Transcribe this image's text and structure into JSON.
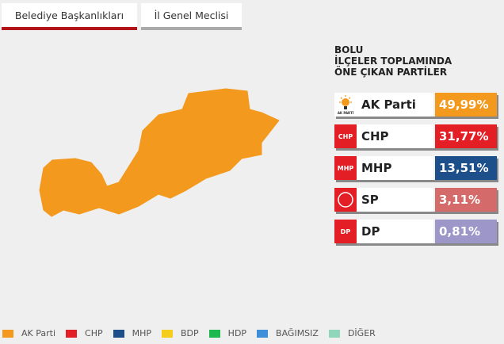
{
  "tabs": [
    {
      "label": "Belediye Başkanlıkları",
      "active": true
    },
    {
      "label": "İl Genel Meclisi",
      "active": false
    }
  ],
  "map": {
    "region": "Bolu",
    "fill": "#f39a1e"
  },
  "panel": {
    "title_lines": [
      "BOLU",
      "İLÇELER TOPLAMINDA",
      "ÖNE ÇIKAN PARTİLER"
    ],
    "parties": [
      {
        "name": "AK Parti",
        "value": "49,99%",
        "color": "#f39a1e",
        "logo_bg": "#ffffff",
        "icon": "ak-parti-bulb-icon",
        "logo_text": "AK PARTİ"
      },
      {
        "name": "CHP",
        "value": "31,77%",
        "color": "#e31e24",
        "logo_bg": "#e31e24",
        "icon": "chp-six-arrows-icon",
        "logo_text": "CHP"
      },
      {
        "name": "MHP",
        "value": "13,51%",
        "color": "#1d4f8a",
        "logo_bg": "#e31e24",
        "icon": "mhp-crescents-icon",
        "logo_text": "MHP"
      },
      {
        "name": "SP",
        "value": "3,11%",
        "color": "#d46a6a",
        "logo_bg": "#e31e24",
        "icon": "sp-crescent-icon",
        "logo_text": ""
      },
      {
        "name": "DP",
        "value": "0,81%",
        "color": "#9c97c8",
        "logo_bg": "#e31e24",
        "icon": "dp-horse-icon",
        "logo_text": "DP"
      }
    ]
  },
  "legend": [
    {
      "label": "AK Parti",
      "color": "#f39a1e"
    },
    {
      "label": "CHP",
      "color": "#e31e24"
    },
    {
      "label": "MHP",
      "color": "#1d4f8a"
    },
    {
      "label": "BDP",
      "color": "#f5cd1c"
    },
    {
      "label": "HDP",
      "color": "#1db84f"
    },
    {
      "label": "BAĞIMSIZ",
      "color": "#3d8fd9"
    },
    {
      "label": "DİĞER",
      "color": "#8fd6bb"
    }
  ]
}
